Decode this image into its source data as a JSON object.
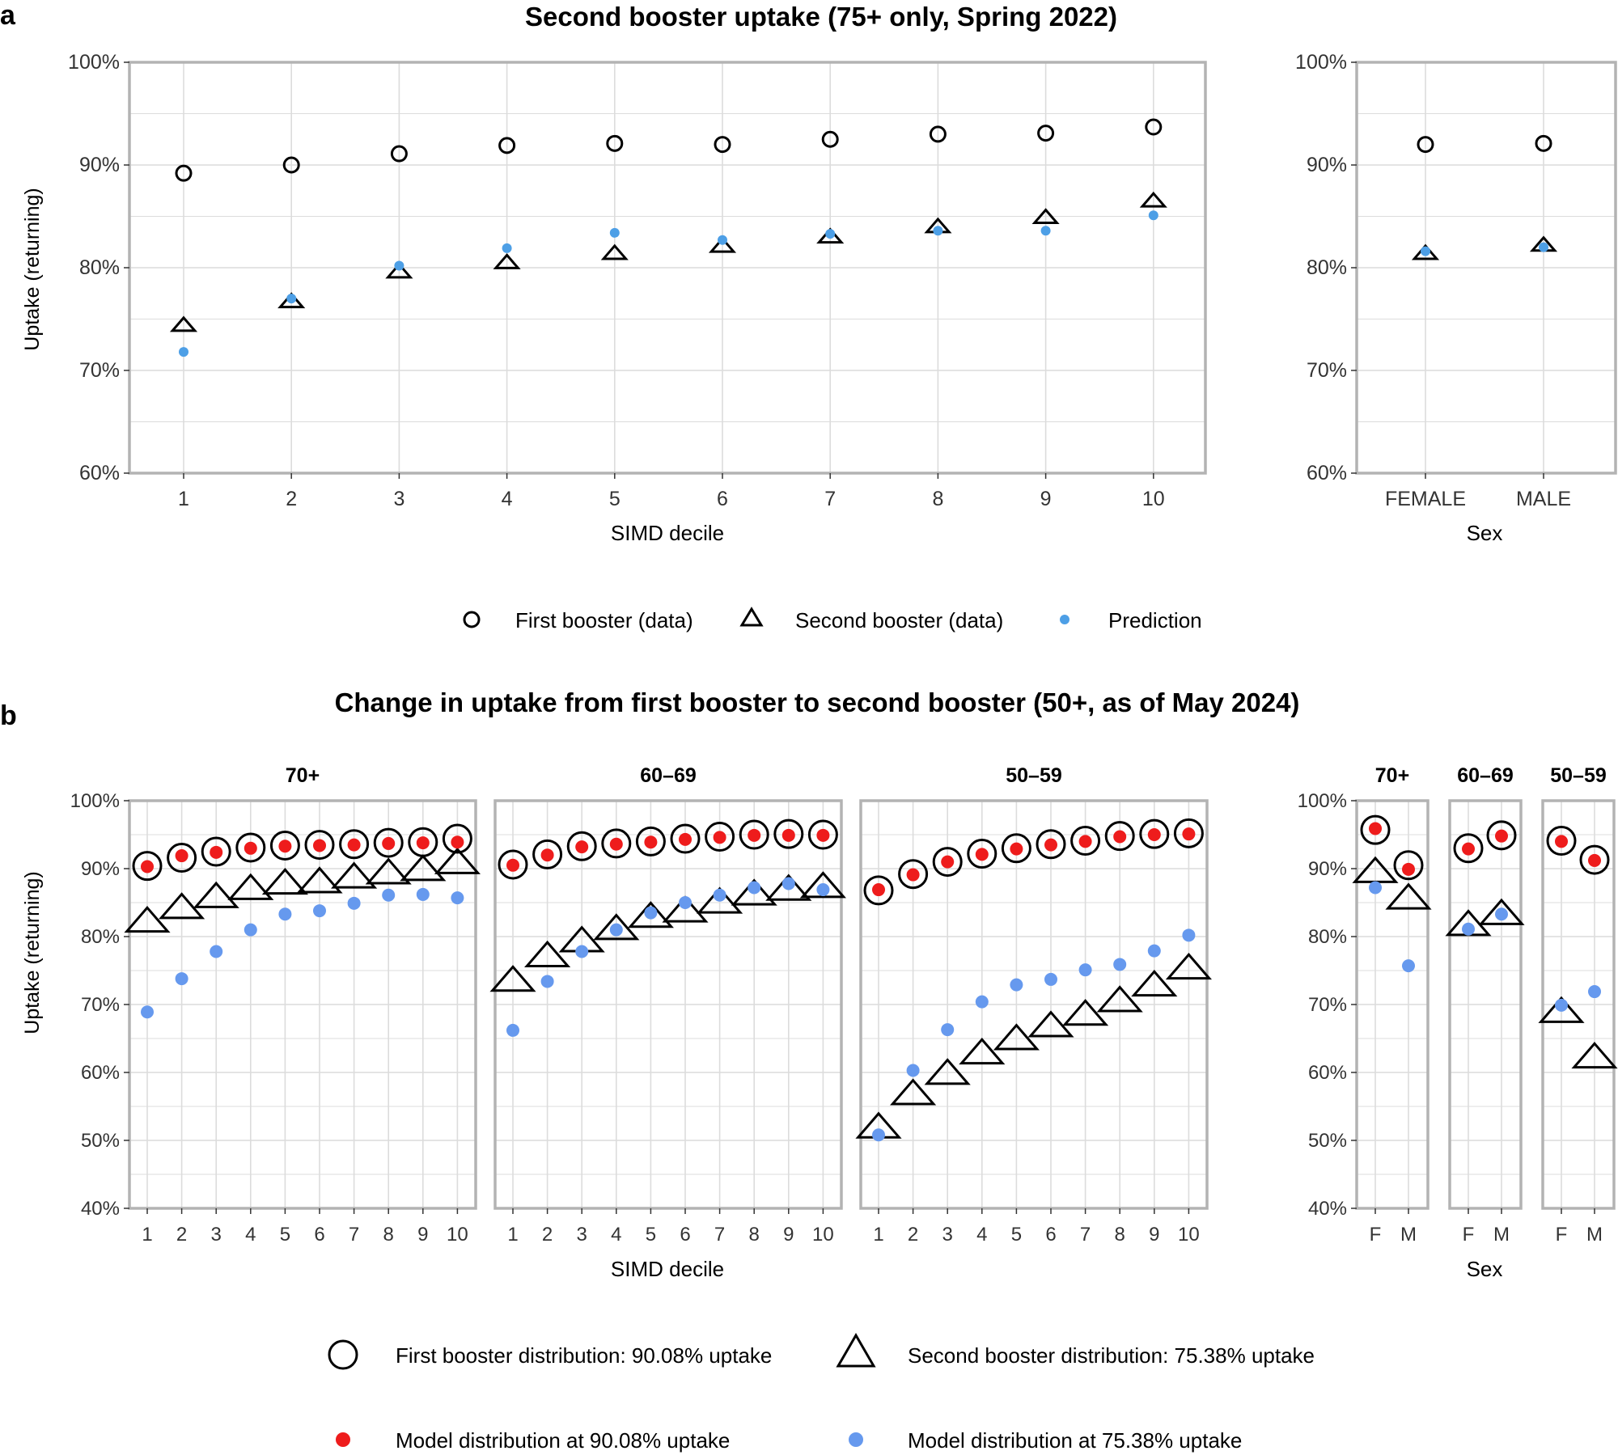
{
  "colors": {
    "panel_border": "#b3b3b3",
    "grid": "#dcdcdc",
    "marker_outline": "#000000",
    "prediction_a": "#4d9fe6",
    "model_blue": "#6699ee",
    "model_red": "#ee1c1c"
  },
  "panel_a": {
    "letter": "a",
    "title": "Second booster uptake (75+ only, Spring 2022)",
    "ylabel": "Uptake (returning)",
    "simd_xlabel": "SIMD decile",
    "sex_xlabel": "Sex",
    "legend": {
      "first": "First booster (data)",
      "second": "Second booster (data)",
      "prediction": "Prediction"
    }
  },
  "panel_b": {
    "letter": "b",
    "title": "Change in uptake from first booster to second booster (50+, as of May 2024)",
    "ylabel": "Uptake (returning)",
    "simd_xlabel": "SIMD decile",
    "sex_xlabel": "Sex",
    "legend": {
      "first": "First booster distribution: 90.08% uptake",
      "second": "Second booster distribution: 75.38% uptake",
      "model_red": "Model distribution at 90.08% uptake",
      "model_blue": "Model distribution at 75.38% uptake"
    }
  },
  "chart_data": [
    {
      "id": "a-simd",
      "type": "scatter",
      "title": "Second booster uptake (75+ only, Spring 2022)",
      "xlabel": "SIMD decile",
      "ylabel": "Uptake (returning)",
      "ylim": [
        60,
        100
      ],
      "yticks": [
        "60%",
        "70%",
        "80%",
        "90%",
        "100%"
      ],
      "categories": [
        "1",
        "2",
        "3",
        "4",
        "5",
        "6",
        "7",
        "8",
        "9",
        "10"
      ],
      "series": [
        {
          "name": "First booster (data)",
          "marker": "circle",
          "values": [
            89.2,
            90.0,
            91.1,
            91.9,
            92.1,
            92.0,
            92.5,
            93.0,
            93.1,
            93.7
          ]
        },
        {
          "name": "Second booster (data)",
          "marker": "triangle",
          "values": [
            74.5,
            76.8,
            79.7,
            80.6,
            81.5,
            82.2,
            83.1,
            84.1,
            85.0,
            86.6
          ]
        },
        {
          "name": "Prediction",
          "marker": "dot",
          "values": [
            71.8,
            77.0,
            80.2,
            81.9,
            83.4,
            82.7,
            83.3,
            83.6,
            83.6,
            85.1
          ]
        }
      ]
    },
    {
      "id": "a-sex",
      "type": "scatter",
      "xlabel": "Sex",
      "ylim": [
        60,
        100
      ],
      "yticks": [
        "60%",
        "70%",
        "80%",
        "90%",
        "100%"
      ],
      "categories": [
        "FEMALE",
        "MALE"
      ],
      "series": [
        {
          "name": "First booster (data)",
          "marker": "circle",
          "values": [
            92.0,
            92.1
          ]
        },
        {
          "name": "Second booster (data)",
          "marker": "triangle",
          "values": [
            81.5,
            82.3
          ]
        },
        {
          "name": "Prediction",
          "marker": "dot",
          "values": [
            81.6,
            82.0
          ]
        }
      ]
    },
    {
      "id": "b-simd-70",
      "type": "scatter",
      "title": "Change in uptake from first booster to second booster (50+, as of May 2024)",
      "facet": "70+",
      "xlabel": "SIMD decile",
      "ylabel": "Uptake (returning)",
      "ylim": [
        40,
        100
      ],
      "yticks": [
        "40%",
        "50%",
        "60%",
        "70%",
        "80%",
        "90%",
        "100%"
      ],
      "categories": [
        "1",
        "2",
        "3",
        "4",
        "5",
        "6",
        "7",
        "8",
        "9",
        "10"
      ],
      "series": [
        {
          "name": "First booster distribution: 90.08% uptake",
          "marker": "circle",
          "values": [
            90.4,
            91.6,
            92.5,
            93.1,
            93.4,
            93.5,
            93.6,
            93.8,
            93.9,
            94.4
          ]
        },
        {
          "name": "Second booster distribution: 75.38% uptake",
          "marker": "triangle",
          "values": [
            82.5,
            84.5,
            86.1,
            87.3,
            88.1,
            88.3,
            89.0,
            89.6,
            90.1,
            91.1
          ]
        },
        {
          "name": "Model distribution at 90.08% uptake",
          "marker": "dot",
          "values": [
            90.3,
            91.9,
            92.4,
            93.0,
            93.3,
            93.4,
            93.5,
            93.7,
            93.8,
            93.9
          ]
        },
        {
          "name": "Model distribution at 75.38% uptake",
          "marker": "dot",
          "values": [
            68.9,
            73.8,
            77.8,
            81.0,
            83.3,
            83.8,
            84.9,
            86.1,
            86.2,
            85.7
          ]
        }
      ]
    },
    {
      "id": "b-simd-60",
      "type": "scatter",
      "facet": "60–69",
      "ylim": [
        40,
        100
      ],
      "categories": [
        "1",
        "2",
        "3",
        "4",
        "5",
        "6",
        "7",
        "8",
        "9",
        "10"
      ],
      "series": [
        {
          "name": "First booster distribution: 90.08% uptake",
          "marker": "circle",
          "values": [
            90.6,
            92.1,
            93.3,
            93.7,
            94.0,
            94.4,
            94.7,
            95.0,
            95.1,
            95.0
          ]
        },
        {
          "name": "Second booster distribution: 75.38% uptake",
          "marker": "triangle",
          "values": [
            73.8,
            77.4,
            79.6,
            81.4,
            83.2,
            84.0,
            85.3,
            86.5,
            87.2,
            87.6
          ]
        },
        {
          "name": "Model distribution at 90.08% uptake",
          "marker": "dot",
          "values": [
            90.5,
            92.0,
            93.2,
            93.6,
            93.9,
            94.3,
            94.6,
            94.9,
            94.9,
            94.9
          ]
        },
        {
          "name": "Model distribution at 75.38% uptake",
          "marker": "dot",
          "values": [
            66.2,
            73.4,
            77.8,
            81.0,
            83.5,
            85.0,
            86.1,
            87.2,
            87.8,
            86.9
          ]
        }
      ]
    },
    {
      "id": "b-simd-50",
      "type": "scatter",
      "facet": "50–59",
      "ylim": [
        40,
        100
      ],
      "categories": [
        "1",
        "2",
        "3",
        "4",
        "5",
        "6",
        "7",
        "8",
        "9",
        "10"
      ],
      "series": [
        {
          "name": "First booster distribution: 90.08% uptake",
          "marker": "circle",
          "values": [
            86.8,
            89.2,
            91.0,
            92.2,
            93.0,
            93.6,
            94.1,
            94.8,
            95.1,
            95.2
          ]
        },
        {
          "name": "Second booster distribution: 75.38% uptake",
          "marker": "triangle",
          "values": [
            52.2,
            57.1,
            60.1,
            63.1,
            65.2,
            67.1,
            68.8,
            70.8,
            73.1,
            75.6
          ]
        },
        {
          "name": "Model distribution at 90.08% uptake",
          "marker": "dot",
          "values": [
            86.9,
            89.1,
            91.0,
            92.1,
            92.9,
            93.5,
            94.0,
            94.7,
            95.0,
            95.1
          ]
        },
        {
          "name": "Model distribution at 75.38% uptake",
          "marker": "dot",
          "values": [
            50.8,
            60.3,
            66.3,
            70.4,
            72.9,
            73.7,
            75.1,
            75.9,
            77.9,
            80.2
          ]
        }
      ]
    },
    {
      "id": "b-sex-70",
      "type": "scatter",
      "facet": "70+",
      "xlabel": "Sex",
      "ylim": [
        40,
        100
      ],
      "yticks": [
        "40%",
        "50%",
        "60%",
        "70%",
        "80%",
        "90%",
        "100%"
      ],
      "categories": [
        "F",
        "M"
      ],
      "series": [
        {
          "name": "First booster distribution: 90.08% uptake",
          "marker": "circle",
          "values": [
            95.7,
            90.5
          ]
        },
        {
          "name": "Second booster distribution: 75.38% uptake",
          "marker": "triangle",
          "values": [
            89.8,
            85.9
          ]
        },
        {
          "name": "Model distribution at 90.08% uptake",
          "marker": "dot",
          "values": [
            95.9,
            89.9
          ]
        },
        {
          "name": "Model distribution at 75.38% uptake",
          "marker": "dot",
          "values": [
            87.2,
            75.7
          ]
        }
      ]
    },
    {
      "id": "b-sex-60",
      "type": "scatter",
      "facet": "60–69",
      "ylim": [
        40,
        100
      ],
      "categories": [
        "F",
        "M"
      ],
      "series": [
        {
          "name": "First booster distribution: 90.08% uptake",
          "marker": "circle",
          "values": [
            93.0,
            94.9
          ]
        },
        {
          "name": "Second booster distribution: 75.38% uptake",
          "marker": "triangle",
          "values": [
            82.0,
            83.6
          ]
        },
        {
          "name": "Model distribution at 90.08% uptake",
          "marker": "dot",
          "values": [
            92.9,
            94.8
          ]
        },
        {
          "name": "Model distribution at 75.38% uptake",
          "marker": "dot",
          "values": [
            81.1,
            83.3
          ]
        }
      ]
    },
    {
      "id": "b-sex-50",
      "type": "scatter",
      "facet": "50–59",
      "ylim": [
        40,
        100
      ],
      "categories": [
        "F",
        "M"
      ],
      "series": [
        {
          "name": "First booster distribution: 90.08% uptake",
          "marker": "circle",
          "values": [
            94.1,
            91.3
          ]
        },
        {
          "name": "Second booster distribution: 75.38% uptake",
          "marker": "triangle",
          "values": [
            69.2,
            62.5
          ]
        },
        {
          "name": "Model distribution at 90.08% uptake",
          "marker": "dot",
          "values": [
            94.0,
            91.2
          ]
        },
        {
          "name": "Model distribution at 75.38% uptake",
          "marker": "dot",
          "values": [
            69.9,
            71.9
          ]
        }
      ]
    }
  ]
}
